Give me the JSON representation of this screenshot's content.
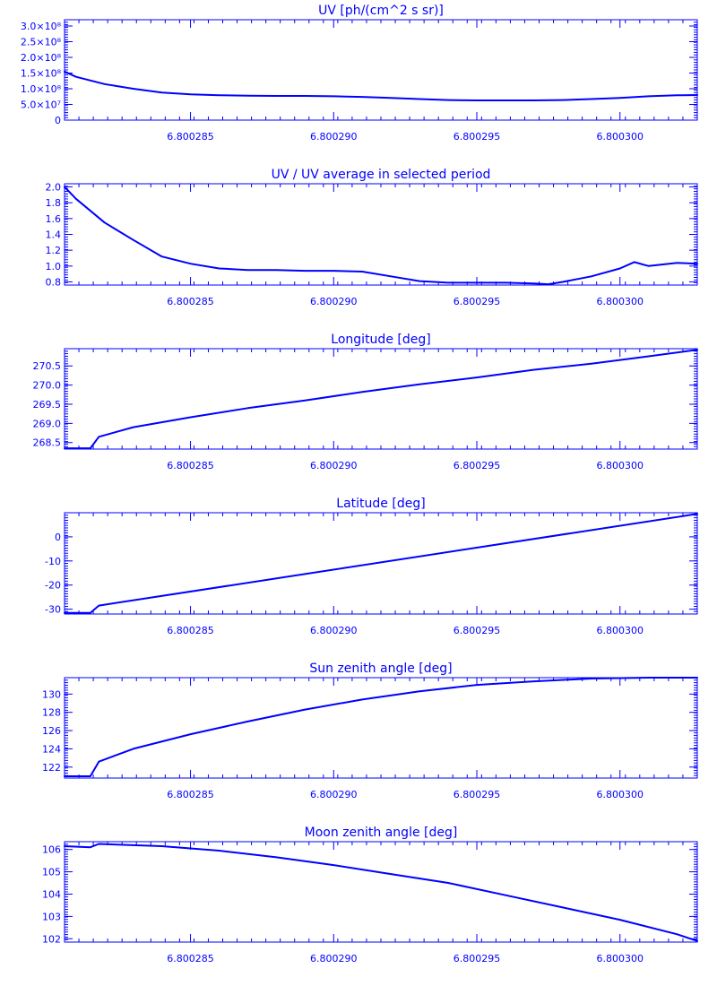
{
  "colors": {
    "line": "#0000ff",
    "background": "#ffffff"
  },
  "chart_data": [
    {
      "type": "line",
      "title": "UV [ph/(cm^2 s sr)]",
      "xlabel": "",
      "ylabel": "",
      "xlim": [
        6.8002806,
        6.8003027
      ],
      "ylim": [
        0,
        320000000
      ],
      "x_ticks": [
        6.800285,
        6.80029,
        6.800295,
        6.8003
      ],
      "x_tick_labels": [
        "6.800285",
        "6.800290",
        "6.800295",
        "6.800300"
      ],
      "y_ticks": [
        0,
        50000000,
        100000000,
        150000000,
        200000000,
        250000000,
        300000000
      ],
      "y_tick_labels": [
        "0",
        "5.0×10⁷",
        "1.0×10⁸",
        "1.5×10⁸",
        "2.0×10⁸",
        "2.5×10⁸",
        "3.0×10⁸"
      ],
      "series": [
        {
          "x": [
            6.8002806,
            6.800281,
            6.800282,
            6.800283,
            6.800284,
            6.800285,
            6.800286,
            6.800287,
            6.800288,
            6.800289,
            6.80029,
            6.800291,
            6.800292,
            6.800293,
            6.800294,
            6.800295,
            6.800296,
            6.800297,
            6.800298,
            6.800299,
            6.8003,
            6.800301,
            6.800302,
            6.8003027
          ],
          "y": [
            155000000,
            138000000,
            115000000,
            100000000,
            88000000,
            82000000,
            79000000,
            78000000,
            77000000,
            77000000,
            76000000,
            74000000,
            71000000,
            67000000,
            64000000,
            63000000,
            63000000,
            63000000,
            64000000,
            67000000,
            71000000,
            76000000,
            79000000,
            80000000
          ]
        }
      ]
    },
    {
      "type": "line",
      "title": "UV / UV average in selected period",
      "xlabel": "",
      "ylabel": "",
      "xlim": [
        6.8002806,
        6.8003027
      ],
      "ylim": [
        0.76,
        2.04
      ],
      "x_ticks": [
        6.800285,
        6.80029,
        6.800295,
        6.8003
      ],
      "x_tick_labels": [
        "6.800285",
        "6.800290",
        "6.800295",
        "6.800300"
      ],
      "y_ticks": [
        0.8,
        1.0,
        1.2,
        1.4,
        1.6,
        1.8,
        2.0
      ],
      "y_tick_labels": [
        "0.8",
        "1.0",
        "1.2",
        "1.4",
        "1.6",
        "1.8",
        "2.0"
      ],
      "series": [
        {
          "x": [
            6.8002806,
            6.800281,
            6.800282,
            6.800283,
            6.800284,
            6.800285,
            6.800286,
            6.800287,
            6.800288,
            6.800289,
            6.80029,
            6.800291,
            6.800292,
            6.800293,
            6.800294,
            6.800295,
            6.800296,
            6.800297,
            6.8002975,
            6.800298,
            6.800299,
            6.8003,
            6.8003005,
            6.800301,
            6.800302,
            6.8003027
          ],
          "y": [
            2.0,
            1.85,
            1.55,
            1.33,
            1.12,
            1.03,
            0.97,
            0.95,
            0.95,
            0.94,
            0.94,
            0.93,
            0.87,
            0.81,
            0.79,
            0.79,
            0.79,
            0.78,
            0.77,
            0.8,
            0.87,
            0.97,
            1.05,
            1.0,
            1.04,
            1.03
          ]
        }
      ]
    },
    {
      "type": "line",
      "title": "Longitude [deg]",
      "xlabel": "",
      "ylabel": "",
      "xlim": [
        6.8002806,
        6.8003027
      ],
      "ylim": [
        268.33,
        270.95
      ],
      "x_ticks": [
        6.800285,
        6.80029,
        6.800295,
        6.8003
      ],
      "x_tick_labels": [
        "6.800285",
        "6.800290",
        "6.800295",
        "6.800300"
      ],
      "y_ticks": [
        268.5,
        269.0,
        269.5,
        270.0,
        270.5
      ],
      "y_tick_labels": [
        "268.5",
        "269.0",
        "269.5",
        "270.0",
        "270.5"
      ],
      "series": [
        {
          "x": [
            6.8002806,
            6.8002815,
            6.8002818,
            6.800283,
            6.800285,
            6.800287,
            6.800289,
            6.800291,
            6.800293,
            6.800295,
            6.800297,
            6.800299,
            6.800301,
            6.8003027
          ],
          "y": [
            268.35,
            268.35,
            268.65,
            268.9,
            269.16,
            269.4,
            269.6,
            269.82,
            270.02,
            270.2,
            270.4,
            270.56,
            270.75,
            270.92
          ]
        }
      ]
    },
    {
      "type": "line",
      "title": "Latitude [deg]",
      "xlabel": "",
      "ylabel": "",
      "xlim": [
        6.8002806,
        6.8003027
      ],
      "ylim": [
        -32,
        10
      ],
      "x_ticks": [
        6.800285,
        6.80029,
        6.800295,
        6.8003
      ],
      "x_tick_labels": [
        "6.800285",
        "6.800290",
        "6.800295",
        "6.800300"
      ],
      "y_ticks": [
        -30,
        -20,
        -10,
        0
      ],
      "y_tick_labels": [
        "-30",
        "-20",
        "-10",
        "0"
      ],
      "series": [
        {
          "x": [
            6.8002806,
            6.8002815,
            6.8002818,
            6.8003027
          ],
          "y": [
            -31.5,
            -31.5,
            -28.5,
            9.5
          ]
        }
      ]
    },
    {
      "type": "line",
      "title": "Sun zenith angle [deg]",
      "xlabel": "",
      "ylabel": "",
      "xlim": [
        6.8002806,
        6.8003027
      ],
      "ylim": [
        120.8,
        131.8
      ],
      "x_ticks": [
        6.800285,
        6.80029,
        6.800295,
        6.8003
      ],
      "x_tick_labels": [
        "6.800285",
        "6.800290",
        "6.800295",
        "6.800300"
      ],
      "y_ticks": [
        122,
        124,
        126,
        128,
        130
      ],
      "y_tick_labels": [
        "122",
        "124",
        "126",
        "128",
        "130"
      ],
      "series": [
        {
          "x": [
            6.8002806,
            6.8002815,
            6.8002818,
            6.800283,
            6.800285,
            6.800287,
            6.800289,
            6.800291,
            6.800293,
            6.800295,
            6.800297,
            6.800299,
            6.800301,
            6.8003027
          ],
          "y": [
            121.0,
            121.0,
            122.6,
            124.0,
            125.6,
            127.0,
            128.3,
            129.4,
            130.3,
            131.0,
            131.4,
            131.7,
            131.8,
            131.8
          ]
        }
      ]
    },
    {
      "type": "line",
      "title": "Moon zenith angle [deg]",
      "xlabel": "",
      "ylabel": "",
      "xlim": [
        6.8002806,
        6.8003027
      ],
      "ylim": [
        101.85,
        106.35
      ],
      "x_ticks": [
        6.800285,
        6.80029,
        6.800295,
        6.8003
      ],
      "x_tick_labels": [
        "6.800285",
        "6.800290",
        "6.800295",
        "6.800300"
      ],
      "y_ticks": [
        102,
        103,
        104,
        105,
        106
      ],
      "y_tick_labels": [
        "102",
        "103",
        "104",
        "105",
        "106"
      ],
      "series": [
        {
          "x": [
            6.8002806,
            6.8002815,
            6.8002818,
            6.800284,
            6.800286,
            6.800288,
            6.80029,
            6.800292,
            6.800294,
            6.800296,
            6.800298,
            6.8003,
            6.800302,
            6.8003027
          ],
          "y": [
            106.15,
            106.1,
            106.25,
            106.15,
            105.95,
            105.65,
            105.3,
            104.9,
            104.5,
            103.95,
            103.4,
            102.85,
            102.2,
            101.9
          ]
        }
      ]
    }
  ]
}
